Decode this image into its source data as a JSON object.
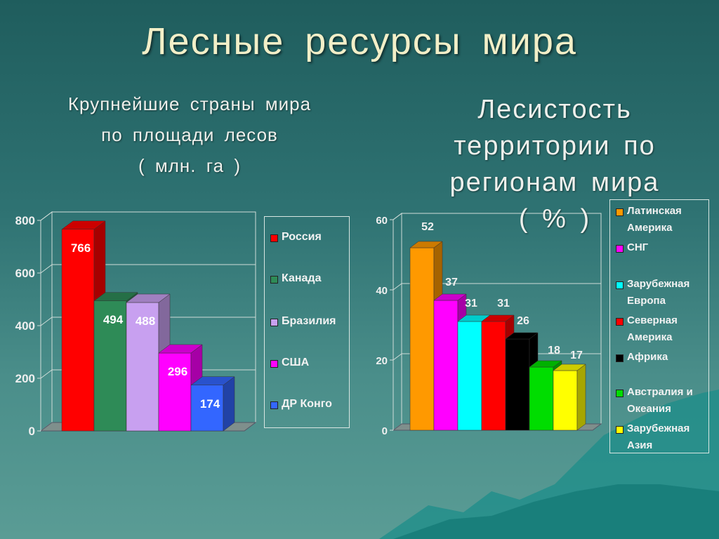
{
  "slide": {
    "title": "Лесные  ресурсы  мира",
    "left_subtitle": [
      "Крупнейшие  страны  мира",
      "по  площади  лесов",
      "( млн.  га )"
    ],
    "right_subtitle": [
      "Лесистость",
      "территории  по",
      "регионам  мира",
      "( % )"
    ]
  },
  "chart_data": [
    {
      "type": "bar",
      "categories": [
        "Россия",
        "Канада",
        "Бразилия",
        "США",
        "ДР Конго"
      ],
      "values": [
        766,
        494,
        488,
        296,
        174
      ],
      "colors": [
        "#ff0000",
        "#2e8b57",
        "#c8a0f0",
        "#ff00ff",
        "#3366ff"
      ],
      "ylim": [
        0,
        800
      ],
      "yticks": [
        0,
        200,
        400,
        600,
        800
      ],
      "grid": true,
      "legend": "right",
      "style": "3d"
    },
    {
      "type": "bar",
      "categories": [
        "Латинская Америка",
        "СНГ",
        "Зарубежная Европа",
        "Северная Америка",
        "Африка",
        "Австралия и Океания",
        "Зарубежная Азия"
      ],
      "values": [
        52,
        37,
        31,
        31,
        26,
        18,
        17
      ],
      "colors": [
        "#ff9900",
        "#ff00ff",
        "#00ffff",
        "#ff0000",
        "#000000",
        "#00dd00",
        "#ffff00"
      ],
      "ylim": [
        0,
        60
      ],
      "yticks": [
        0,
        20,
        40,
        60
      ],
      "grid": true,
      "legend": "right",
      "style": "3d"
    }
  ]
}
